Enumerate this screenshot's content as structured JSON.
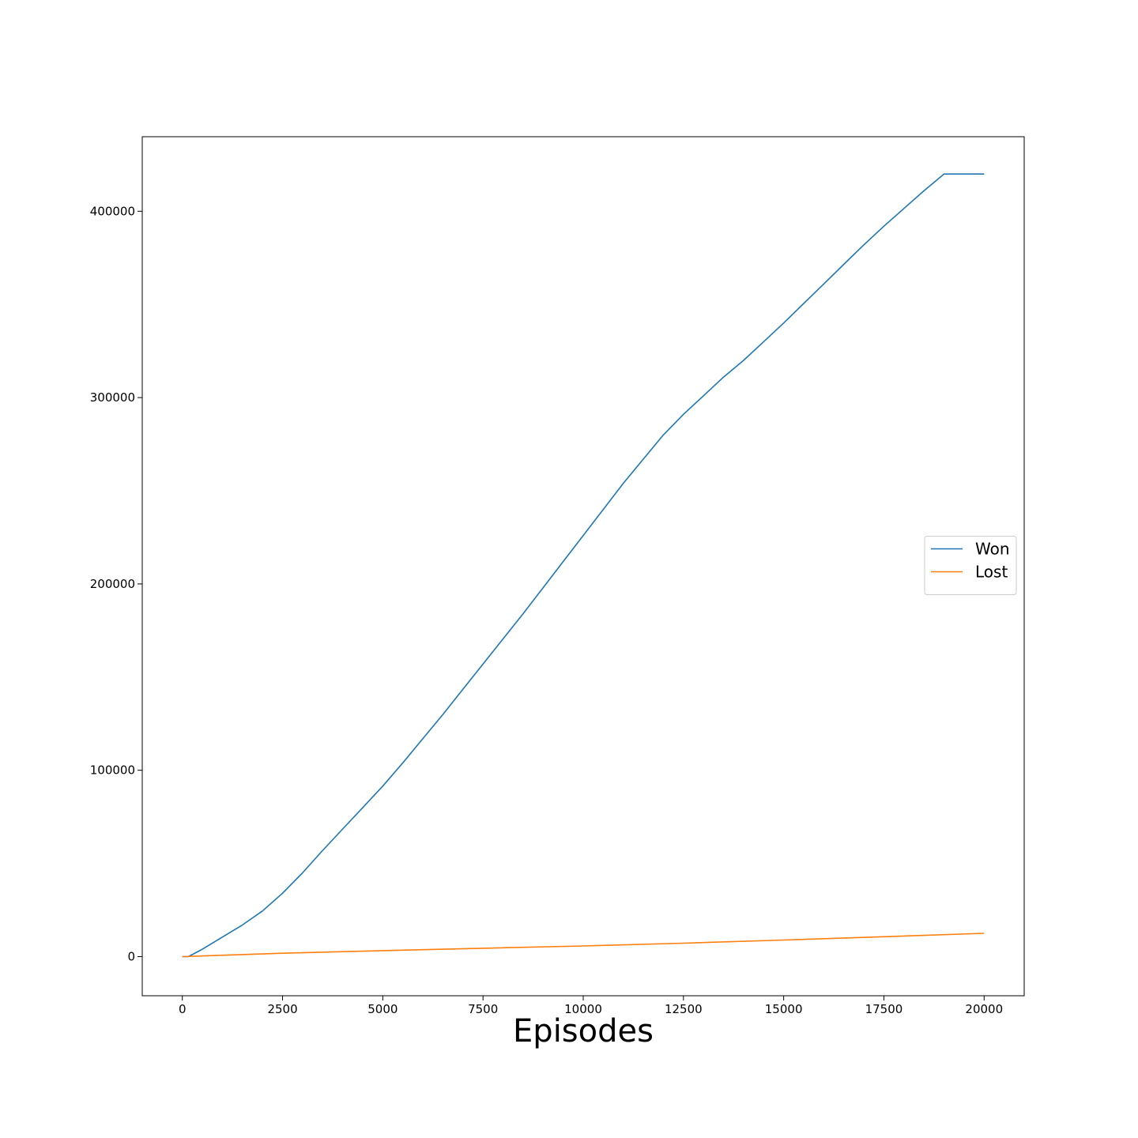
{
  "chart_data": {
    "type": "line",
    "title": "",
    "xlabel": "Episodes",
    "ylabel": "",
    "xlim": [
      -1000,
      21000
    ],
    "ylim": [
      -21000,
      440000
    ],
    "xticks": [
      0,
      2500,
      5000,
      7500,
      10000,
      12500,
      15000,
      17500,
      20000
    ],
    "xtick_labels": [
      "0",
      "2500",
      "5000",
      "7500",
      "10000",
      "12500",
      "15000",
      "17500",
      "20000"
    ],
    "yticks": [
      0,
      100000,
      200000,
      300000,
      400000
    ],
    "ytick_labels": [
      "0",
      "100000",
      "200000",
      "300000",
      "400000"
    ],
    "grid": false,
    "legend_position": "center-right",
    "series": [
      {
        "name": "Won",
        "color": "#1f77b4",
        "x": [
          0,
          150,
          500,
          1000,
          1500,
          2000,
          2500,
          3000,
          3500,
          4000,
          4500,
          5000,
          5500,
          6000,
          6500,
          7000,
          7500,
          8000,
          8500,
          9000,
          9500,
          10000,
          10500,
          11000,
          11500,
          12000,
          12500,
          13000,
          13500,
          14000,
          14500,
          15000,
          15500,
          16000,
          16500,
          17000,
          17500,
          18000,
          18500,
          19000,
          19500,
          20000
        ],
        "y": [
          0,
          0,
          4000,
          10500,
          17000,
          24500,
          34000,
          45000,
          57000,
          68500,
          80000,
          91500,
          104000,
          117000,
          130000,
          143500,
          157000,
          170500,
          184000,
          198000,
          212000,
          226000,
          240000,
          254000,
          267000,
          280000,
          291000,
          301000,
          311000,
          320000,
          330000,
          340000,
          350500,
          361000,
          371500,
          382000,
          392000,
          401500,
          411000,
          420000,
          420000,
          420000
        ]
      },
      {
        "name": "Lost",
        "color": "#ff7f0e",
        "x": [
          0,
          2500,
          5000,
          7500,
          10000,
          12500,
          15000,
          17500,
          20000
        ],
        "y": [
          0,
          1800,
          3200,
          4500,
          5700,
          7200,
          8900,
          10700,
          12500
        ]
      }
    ]
  }
}
